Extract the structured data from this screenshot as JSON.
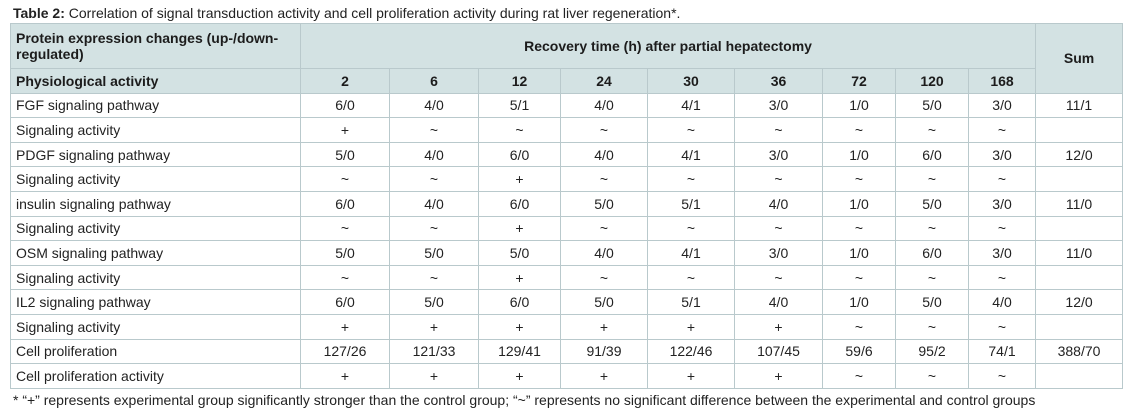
{
  "caption": {
    "label": "Table 2:",
    "text": " Correlation of signal transduction activity and cell proliferation activity during rat liver regeneration*."
  },
  "header": {
    "protein_changes": "Protein expression changes (up-/down-regulated)",
    "recovery_time": "Recovery time (h) after partial hepatectomy",
    "sum": "Sum",
    "physiological_activity": "Physiological activity",
    "hours": [
      "2",
      "6",
      "12",
      "24",
      "30",
      "36",
      "72",
      "120",
      "168"
    ]
  },
  "rows": [
    {
      "label": "FGF signaling pathway",
      "values": [
        "6/0",
        "4/0",
        "5/1",
        "4/0",
        "4/1",
        "3/0",
        "1/0",
        "5/0",
        "3/0"
      ],
      "sum": "11/1"
    },
    {
      "label": "Signaling activity",
      "values": [
        "+",
        "~",
        "~",
        "~",
        "~",
        "~",
        "~",
        "~",
        "~"
      ],
      "sum": ""
    },
    {
      "label": "PDGF signaling pathway",
      "values": [
        "5/0",
        "4/0",
        "6/0",
        "4/0",
        "4/1",
        "3/0",
        "1/0",
        "6/0",
        "3/0"
      ],
      "sum": "12/0"
    },
    {
      "label": "Signaling activity",
      "values": [
        "~",
        "~",
        "+",
        "~",
        "~",
        "~",
        "~",
        "~",
        "~"
      ],
      "sum": ""
    },
    {
      "label": "insulin signaling pathway",
      "values": [
        "6/0",
        "4/0",
        "6/0",
        "5/0",
        "5/1",
        "4/0",
        "1/0",
        "5/0",
        "3/0"
      ],
      "sum": "11/0"
    },
    {
      "label": "Signaling activity",
      "values": [
        "~",
        "~",
        "+",
        "~",
        "~",
        "~",
        "~",
        "~",
        "~"
      ],
      "sum": ""
    },
    {
      "label": "OSM signaling pathway",
      "values": [
        "5/0",
        "5/0",
        "5/0",
        "4/0",
        "4/1",
        "3/0",
        "1/0",
        "6/0",
        "3/0"
      ],
      "sum": "11/0"
    },
    {
      "label": "Signaling activity",
      "values": [
        "~",
        "~",
        "+",
        "~",
        "~",
        "~",
        "~",
        "~",
        "~"
      ],
      "sum": ""
    },
    {
      "label": "IL2 signaling pathway",
      "values": [
        "6/0",
        "5/0",
        "6/0",
        "5/0",
        "5/1",
        "4/0",
        "1/0",
        "5/0",
        "4/0"
      ],
      "sum": "12/0"
    },
    {
      "label": "Signaling activity",
      "values": [
        "+",
        "+",
        "+",
        "+",
        "+",
        "+",
        "~",
        "~",
        "~"
      ],
      "sum": ""
    },
    {
      "label": "Cell proliferation",
      "values": [
        "127/26",
        "121/33",
        "129/41",
        "91/39",
        "122/46",
        "107/45",
        "59/6",
        "95/2",
        "74/1"
      ],
      "sum": "388/70"
    },
    {
      "label": "Cell proliferation activity",
      "values": [
        "+",
        "+",
        "+",
        "+",
        "+",
        "+",
        "~",
        "~",
        "~"
      ],
      "sum": ""
    }
  ],
  "footnote": "* “+” represents experimental group significantly stronger than the control group; “~” represents no significant difference between the experimental and control groups"
}
